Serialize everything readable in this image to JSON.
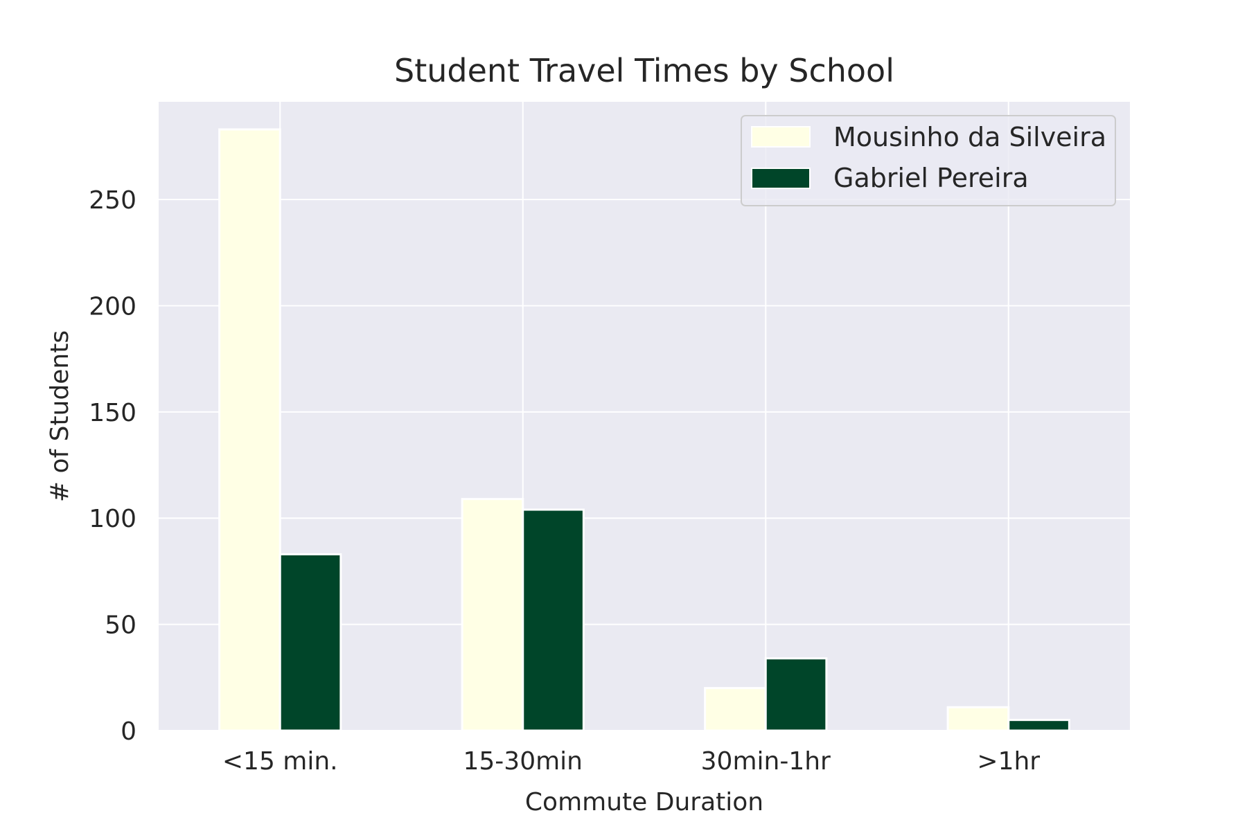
{
  "chart_data": {
    "type": "bar",
    "title": "Student Travel Times by School",
    "xlabel": "Commute Duration",
    "ylabel": "# of Students",
    "categories": [
      "<15 min.",
      "15-30min",
      "30min-1hr",
      ">1hr"
    ],
    "series": [
      {
        "name": "Mousinho da Silveira",
        "values": [
          283,
          109,
          20,
          11
        ],
        "color": "#ffffe5"
      },
      {
        "name": "Gabriel Pereira",
        "values": [
          83,
          104,
          34,
          5
        ],
        "color": "#004529"
      }
    ],
    "ylim": [
      0,
      296
    ],
    "yticks": [
      0,
      50,
      100,
      150,
      200,
      250
    ],
    "grid": true,
    "legend_position": "top-right",
    "colors": {
      "plot_background": "#eaeaf2",
      "grid": "#ffffff",
      "text": "#262626"
    }
  }
}
